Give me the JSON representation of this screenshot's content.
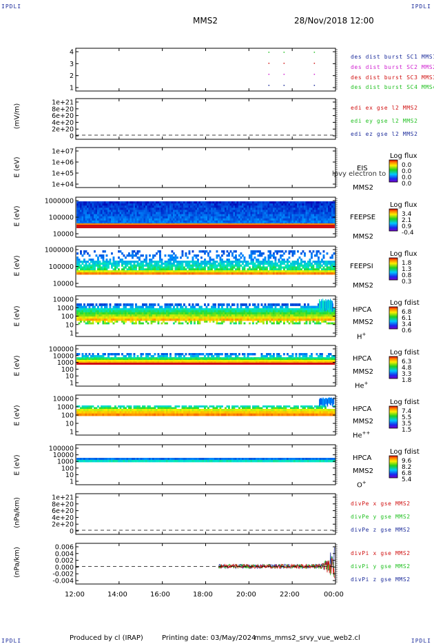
{
  "header": {
    "logo_left": "IPDLI",
    "logo_right": "IPDLI",
    "spacecraft": "MMS2",
    "datetime": "28/Nov/2018 12:00"
  },
  "bottom_logos": {
    "left": "IPDLI",
    "right": "IPDLI"
  },
  "footer": {
    "produced": "Produced by cl (IRAP)",
    "printing": "Printing date: 03/May/2024",
    "script": "mms_mms2_srvy_vue_web2.cl"
  },
  "colors": {
    "blue_text": "#1a2a9a",
    "magenta": "#d020d0",
    "red": "#d01010",
    "green": "#20c020"
  },
  "chart_data": {
    "type": "heatmap",
    "x_ticks": [
      "12:00",
      "14:00",
      "16:00",
      "18:00",
      "20:00",
      "22:00",
      "00:00"
    ],
    "x_range_hours": [
      12,
      24
    ],
    "panels": [
      {
        "id": "burst",
        "ylabel": "",
        "y_ticks": [
          "4",
          "3",
          "2",
          "1"
        ],
        "legend": [
          {
            "text": "des dist burst SC1 MMS1",
            "color": "#1a2a9a"
          },
          {
            "text": "des dist burst SC2 MMS2",
            "color": "#d020d0"
          },
          {
            "text": "des dist burst SC3 MMS3",
            "color": "#d01010"
          },
          {
            "text": "des dist burst SC4 MMS4",
            "color": "#20c020"
          }
        ],
        "burst_times_hours": [
          20.9,
          21.6,
          23.0
        ]
      },
      {
        "id": "edi",
        "ylabel": "(mV/m)",
        "y_ticks": [
          "1e+21",
          "8e+20",
          "6e+20",
          "4e+20",
          "2e+20",
          "0"
        ],
        "legend": [
          {
            "text": "edi ex gse l2 MMS2",
            "color": "#d01010"
          },
          {
            "text": "edi ey gse l2 MMS2",
            "color": "#20c020"
          },
          {
            "text": "edi ez gse l2 MMS2",
            "color": "#1a2a9a"
          }
        ]
      },
      {
        "id": "eis",
        "ylabel": "E (eV)",
        "y_ticks": [
          "1e+07",
          "1e+06",
          "1e+05",
          "1e+04"
        ],
        "side_labels": [
          "EIS",
          "lpvy electron to",
          "MMS2"
        ],
        "cb_title": "Log flux",
        "cb_values": [
          "0.0",
          "0.0",
          "0.0",
          "0.0"
        ]
      },
      {
        "id": "feepse",
        "ylabel": "E (eV)",
        "y_ticks": [
          "1000000",
          "100000",
          "10000"
        ],
        "side_labels": [
          "FEEPSE",
          "MMS2"
        ],
        "cb_title": "Log flux",
        "cb_values": [
          "3.4",
          "2.1",
          "0.9",
          "-0.4"
        ]
      },
      {
        "id": "feepsi",
        "ylabel": "E (eV)",
        "y_ticks": [
          "1000000",
          "100000",
          "10000"
        ],
        "side_labels": [
          "FEEPSI",
          "MMS2"
        ],
        "cb_title": "Log flux",
        "cb_values": [
          "1.8",
          "1.3",
          "0.8",
          "0.3"
        ]
      },
      {
        "id": "hpca_h",
        "ylabel": "E (eV)",
        "y_ticks": [
          "10000",
          "1000",
          "100",
          "10",
          "1"
        ],
        "side_labels": [
          "HPCA",
          "MMS2",
          "H",
          "+"
        ],
        "cb_title": "Log fdist",
        "cb_values": [
          "6.8",
          "6.1",
          "3.4",
          "0.6"
        ]
      },
      {
        "id": "hpca_he",
        "ylabel": "E (eV)",
        "y_ticks": [
          "100000",
          "10000",
          "1000",
          "100",
          "10",
          "1"
        ],
        "side_labels": [
          "HPCA",
          "MMS2",
          "He",
          "+"
        ],
        "cb_title": "Log fdist",
        "cb_values": [
          "6.3",
          "4.8",
          "3.3",
          "1.8"
        ]
      },
      {
        "id": "hpca_hepp",
        "ylabel": "E (eV)",
        "y_ticks": [
          "10000",
          "1000",
          "100",
          "10",
          "1"
        ],
        "side_labels": [
          "HPCA",
          "MMS2",
          "He",
          "++"
        ],
        "cb_title": "Log fdist",
        "cb_values": [
          "7.4",
          "5.5",
          "3.5",
          "1.5"
        ]
      },
      {
        "id": "hpca_o",
        "ylabel": "E (eV)",
        "y_ticks": [
          "100000",
          "10000",
          "1000",
          "100",
          "10",
          "1"
        ],
        "side_labels": [
          "HPCA",
          "MMS2",
          "O",
          "+"
        ],
        "cb_title": "Log fdist",
        "cb_values": [
          "9.6",
          "8.2",
          "6.8",
          "5.4"
        ]
      },
      {
        "id": "divpe",
        "ylabel": "(nPa/km)",
        "y_ticks": [
          "1e+21",
          "8e+20",
          "6e+20",
          "4e+20",
          "2e+20",
          "0"
        ],
        "legend": [
          {
            "text": "divPe x gse MMS2",
            "color": "#d01010"
          },
          {
            "text": "divPe y gse MMS2",
            "color": "#20c020"
          },
          {
            "text": "divPe z gse MMS2",
            "color": "#1a2a9a"
          }
        ]
      },
      {
        "id": "divpi",
        "ylabel": "(nPa/km)",
        "y_ticks": [
          "0.006",
          "0.004",
          "0.002",
          "0.000",
          "-0.002",
          "-0.004"
        ],
        "y_range": [
          -0.005,
          0.0065
        ],
        "legend": [
          {
            "text": "divPi x gse MMS2",
            "color": "#d01010"
          },
          {
            "text": "divPi y gse MMS2",
            "color": "#20c020"
          },
          {
            "text": "divPi z gse MMS2",
            "color": "#1a2a9a"
          }
        ],
        "data_start_hour": 18.6
      }
    ]
  }
}
